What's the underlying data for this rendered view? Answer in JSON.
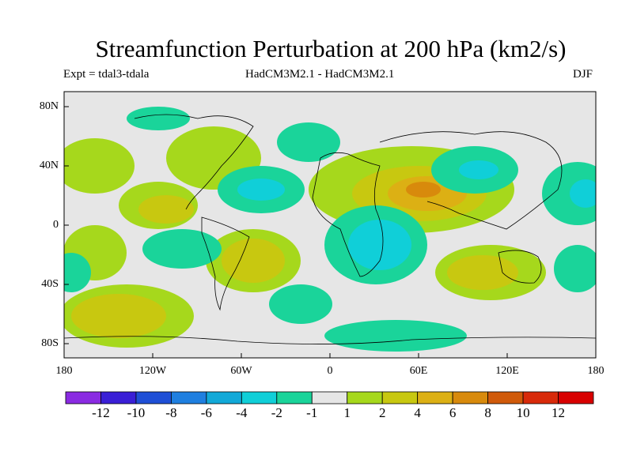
{
  "header": {
    "title": "Streamfunction Perturbation at 200 hPa (km2/s)",
    "experiment": "Expt = tdal3-tdala",
    "models": "HadCM3M2.1 - HadCM3M2.1",
    "season": "DJF"
  },
  "axes": {
    "lat_labels": [
      "80N",
      "40N",
      "0",
      "40S",
      "80S"
    ],
    "lon_labels": [
      "180",
      "120W",
      "60W",
      "0",
      "60E",
      "120E",
      "180"
    ]
  },
  "colorbar": {
    "labels": [
      "-12",
      "-10",
      "-8",
      "-6",
      "-4",
      "-2",
      "-1",
      "1",
      "2",
      "4",
      "6",
      "8",
      "10",
      "12"
    ],
    "colors": [
      "#8a2be2",
      "#3a1fd6",
      "#1f4fd6",
      "#1f7fe0",
      "#12a9d8",
      "#10cfd8",
      "#1ad49a",
      "#e6e6e6",
      "#a6d81c",
      "#c8c810",
      "#dcb014",
      "#d88a0c",
      "#d05a0a",
      "#d82a0a",
      "#d80000"
    ]
  },
  "map_fields": {
    "background_color": "#e6e6e6",
    "coastline_color": "#000000"
  }
}
